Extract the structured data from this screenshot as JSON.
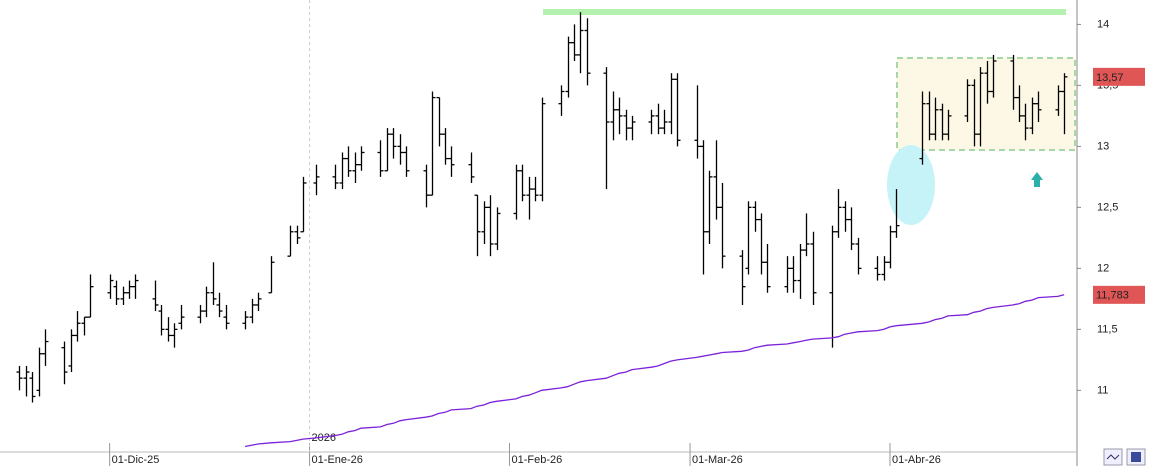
{
  "chart_data": {
    "type": "ohlc",
    "color": "#000000",
    "x": [
      "2025-11-17",
      "2025-11-18",
      "2025-11-19",
      "2025-11-20",
      "2025-11-21",
      "2025-11-24",
      "2025-11-25",
      "2025-11-26",
      "2025-11-27",
      "2025-11-28",
      "2025-12-01",
      "2025-12-02",
      "2025-12-03",
      "2025-12-04",
      "2025-12-05",
      "2025-12-08",
      "2025-12-09",
      "2025-12-10",
      "2025-12-11",
      "2025-12-12",
      "2025-12-15",
      "2025-12-16",
      "2025-12-17",
      "2025-12-18",
      "2025-12-19",
      "2025-12-22",
      "2025-12-23",
      "2025-12-24",
      "2025-12-26",
      "2025-12-29",
      "2025-12-30",
      "2025-12-31",
      "2026-01-02",
      "2026-01-05",
      "2026-01-06",
      "2026-01-07",
      "2026-01-08",
      "2026-01-09",
      "2026-01-12",
      "2026-01-13",
      "2026-01-14",
      "2026-01-15",
      "2026-01-16",
      "2026-01-19",
      "2026-01-20",
      "2026-01-21",
      "2026-01-22",
      "2026-01-23",
      "2026-01-26",
      "2026-01-27",
      "2026-01-28",
      "2026-01-29",
      "2026-01-30",
      "2026-02-02",
      "2026-02-03",
      "2026-02-04",
      "2026-02-05",
      "2026-02-06",
      "2026-02-09",
      "2026-02-10",
      "2026-02-11",
      "2026-02-12",
      "2026-02-13",
      "2026-02-16",
      "2026-02-17",
      "2026-02-18",
      "2026-02-19",
      "2026-02-20",
      "2026-02-23",
      "2026-02-24",
      "2026-02-25",
      "2026-02-26",
      "2026-02-27",
      "2026-03-02",
      "2026-03-03",
      "2026-03-04",
      "2026-03-05",
      "2026-03-06",
      "2026-03-09",
      "2026-03-10",
      "2026-03-11",
      "2026-03-12",
      "2026-03-13",
      "2026-03-16",
      "2026-03-17",
      "2026-03-18",
      "2026-03-19",
      "2026-03-20",
      "2026-03-23",
      "2026-03-24",
      "2026-03-25",
      "2026-03-26",
      "2026-03-27",
      "2026-03-30",
      "2026-03-31",
      "2026-04-01",
      "2026-04-02",
      "2026-04-06",
      "2026-04-07",
      "2026-04-08",
      "2026-04-09",
      "2026-04-10",
      "2026-04-13",
      "2026-04-14",
      "2026-04-15",
      "2026-04-16",
      "2026-04-17",
      "2026-04-20",
      "2026-04-21",
      "2026-04-22",
      "2026-04-23",
      "2026-04-24",
      "2026-04-27",
      "2026-04-28"
    ],
    "open": [
      11.15,
      11.1,
      11.1,
      11.0,
      11.3,
      11.35,
      11.2,
      11.45,
      11.55,
      11.6,
      11.8,
      11.85,
      11.75,
      11.8,
      11.85,
      11.75,
      11.65,
      11.5,
      11.45,
      11.55,
      11.6,
      11.65,
      11.8,
      11.7,
      11.6,
      11.55,
      11.6,
      11.7,
      11.8,
      12.1,
      12.3,
      12.3,
      12.7,
      12.75,
      12.7,
      12.9,
      12.8,
      12.85,
      12.95,
      12.8,
      13.1,
      13.0,
      12.95,
      12.8,
      12.6,
      13.4,
      13.1,
      12.9,
      12.85,
      12.6,
      12.3,
      12.5,
      12.2,
      12.45,
      12.8,
      12.6,
      12.65,
      12.6,
      13.35,
      13.45,
      13.85,
      13.75,
      13.95,
      13.6,
      13.2,
      13.3,
      13.25,
      13.15,
      13.2,
      13.25,
      13.15,
      13.2,
      13.55,
      13.05,
      13.0,
      12.3,
      12.75,
      12.5,
      12.1,
      12.0,
      12.5,
      12.4,
      12.05,
      11.85,
      12.0,
      11.9,
      12.15,
      12.2,
      11.8,
      12.3,
      12.5,
      12.4,
      12.2,
      12.0,
      11.95,
      12.05,
      12.3,
      12.9,
      13.35,
      13.1,
      13.3,
      13.1,
      13.25,
      13.5,
      13.1,
      13.6,
      13.45,
      13.7,
      13.4,
      13.25,
      13.15,
      13.35,
      13.3,
      13.45
    ],
    "high": [
      11.2,
      11.2,
      11.15,
      11.35,
      11.5,
      11.4,
      11.5,
      11.65,
      11.6,
      11.95,
      11.95,
      11.9,
      11.85,
      11.9,
      11.95,
      11.9,
      11.7,
      11.6,
      11.55,
      11.7,
      11.7,
      11.85,
      12.05,
      11.8,
      11.7,
      11.65,
      11.75,
      11.8,
      12.1,
      12.35,
      12.35,
      12.75,
      12.85,
      12.85,
      12.95,
      13.0,
      12.95,
      13.0,
      13.05,
      13.15,
      13.15,
      13.1,
      13.0,
      12.85,
      13.45,
      13.4,
      13.15,
      13.0,
      12.95,
      12.6,
      12.55,
      12.6,
      12.5,
      12.85,
      12.85,
      12.75,
      12.75,
      13.4,
      13.5,
      13.9,
      14.0,
      14.1,
      14.05,
      13.65,
      13.45,
      13.4,
      13.3,
      13.25,
      13.3,
      13.35,
      13.3,
      13.6,
      13.6,
      13.5,
      13.05,
      12.8,
      13.05,
      12.7,
      12.15,
      12.55,
      12.55,
      12.45,
      12.2,
      12.1,
      12.1,
      12.2,
      12.45,
      12.3,
      12.35,
      12.65,
      12.55,
      12.5,
      12.25,
      12.1,
      12.1,
      12.35,
      12.65,
      13.45,
      13.45,
      13.4,
      13.35,
      13.3,
      13.55,
      13.55,
      13.65,
      13.7,
      13.75,
      13.75,
      13.5,
      13.35,
      13.4,
      13.45,
      13.5,
      13.6
    ],
    "low": [
      11.0,
      10.95,
      10.9,
      10.95,
      11.2,
      11.05,
      11.15,
      11.4,
      11.45,
      11.6,
      11.75,
      11.7,
      11.7,
      11.75,
      11.75,
      11.65,
      11.45,
      11.4,
      11.35,
      11.5,
      11.55,
      11.6,
      11.7,
      11.6,
      11.5,
      11.5,
      11.55,
      11.65,
      11.8,
      12.1,
      12.2,
      12.3,
      12.6,
      12.65,
      12.65,
      12.75,
      12.7,
      12.8,
      12.75,
      12.8,
      12.9,
      12.85,
      12.75,
      12.5,
      12.6,
      13.0,
      12.85,
      12.75,
      12.7,
      12.1,
      12.2,
      12.1,
      12.15,
      12.4,
      12.55,
      12.4,
      12.55,
      12.55,
      13.25,
      13.4,
      13.7,
      13.6,
      13.5,
      12.65,
      13.05,
      13.1,
      13.05,
      13.05,
      13.1,
      13.1,
      13.1,
      13.1,
      13.0,
      12.9,
      11.95,
      12.2,
      12.4,
      12.0,
      11.7,
      11.95,
      12.3,
      11.95,
      11.8,
      11.8,
      11.8,
      11.75,
      12.1,
      11.7,
      11.35,
      12.25,
      12.3,
      12.15,
      11.95,
      11.9,
      11.9,
      12.0,
      12.25,
      12.85,
      13.05,
      13.05,
      13.05,
      13.05,
      13.2,
      13.0,
      13.0,
      13.35,
      13.4,
      13.3,
      13.2,
      13.05,
      13.1,
      13.2,
      13.25,
      13.1
    ],
    "close": [
      11.1,
      11.15,
      10.95,
      11.3,
      11.4,
      11.15,
      11.45,
      11.55,
      11.6,
      11.85,
      11.9,
      11.75,
      11.8,
      11.85,
      11.9,
      11.7,
      11.5,
      11.45,
      11.5,
      11.6,
      11.65,
      11.8,
      11.75,
      11.65,
      11.55,
      11.6,
      11.7,
      11.75,
      12.05,
      12.3,
      12.25,
      12.7,
      12.75,
      12.7,
      12.9,
      12.8,
      12.85,
      12.95,
      12.8,
      13.1,
      13.0,
      12.95,
      12.8,
      12.6,
      13.4,
      13.1,
      12.9,
      12.85,
      12.75,
      12.3,
      12.5,
      12.2,
      12.45,
      12.8,
      12.6,
      12.65,
      12.6,
      13.35,
      13.45,
      13.85,
      13.75,
      13.95,
      13.6,
      13.2,
      13.3,
      13.25,
      13.15,
      13.2,
      13.25,
      13.15,
      13.2,
      13.55,
      13.05,
      13.0,
      12.3,
      12.75,
      12.5,
      12.1,
      11.85,
      12.5,
      12.4,
      12.05,
      11.85,
      12.0,
      11.9,
      12.15,
      12.2,
      11.8,
      12.3,
      12.5,
      12.4,
      12.2,
      12.0,
      11.95,
      12.05,
      12.3,
      12.35,
      13.35,
      13.1,
      13.3,
      13.1,
      13.25,
      13.5,
      13.1,
      13.6,
      13.45,
      13.7,
      13.4,
      13.25,
      13.15,
      13.35,
      13.3,
      13.45,
      13.57
    ],
    "ma": {
      "color": "#7b22d8",
      "values": [
        null,
        null,
        null,
        null,
        null,
        null,
        null,
        null,
        null,
        null,
        null,
        null,
        null,
        null,
        null,
        null,
        null,
        null,
        null,
        null,
        null,
        null,
        null,
        null,
        null,
        10.54,
        10.55,
        10.56,
        10.57,
        10.58,
        10.59,
        10.6,
        10.61,
        10.63,
        10.64,
        10.66,
        10.67,
        10.69,
        10.7,
        10.72,
        10.73,
        10.75,
        10.76,
        10.78,
        10.79,
        10.81,
        10.82,
        10.84,
        10.85,
        10.87,
        10.88,
        10.9,
        10.91,
        10.93,
        10.95,
        10.96,
        10.98,
        11.0,
        11.02,
        11.03,
        11.05,
        11.07,
        11.08,
        11.1,
        11.12,
        11.14,
        11.15,
        11.17,
        11.19,
        11.2,
        11.22,
        11.24,
        11.25,
        11.27,
        11.28,
        11.29,
        11.3,
        11.31,
        11.32,
        11.33,
        11.35,
        11.36,
        11.37,
        11.38,
        11.39,
        11.4,
        11.41,
        11.42,
        11.43,
        11.44,
        11.46,
        11.47,
        11.48,
        11.49,
        11.5,
        11.52,
        11.53,
        11.55,
        11.56,
        11.58,
        11.59,
        11.61,
        11.62,
        11.64,
        11.65,
        11.67,
        11.68,
        11.7,
        11.71,
        11.73,
        11.74,
        11.76,
        11.77,
        11.783
      ]
    },
    "xlim": [
      "2025-11-14",
      "2026-04-30"
    ],
    "xticks": [
      {
        "value": "2025-12-01",
        "label": "01-Dic-25"
      },
      {
        "value": "2026-01-01",
        "label": "01-Ene-26"
      },
      {
        "value": "2026-02-01",
        "label": "01-Feb-26"
      },
      {
        "value": "2026-03-01",
        "label": "01-Mar-26"
      },
      {
        "value": "2026-04-01",
        "label": "01-Abr-26"
      }
    ],
    "year_marker": "2026",
    "ylim": [
      10.47,
      14.2
    ],
    "yticks": [
      11,
      {
        "value": 11.5,
        "label": "11,5"
      },
      12,
      {
        "value": 12.5,
        "label": "12,5"
      },
      13,
      {
        "value": 13.5,
        "label": "13,5"
      },
      14
    ],
    "price_tags": {
      "color": "#e05555",
      "items": [
        {
          "value": 13.57,
          "label": "13,57"
        },
        {
          "value": 11.783,
          "label": "11,783"
        }
      ]
    }
  }
}
